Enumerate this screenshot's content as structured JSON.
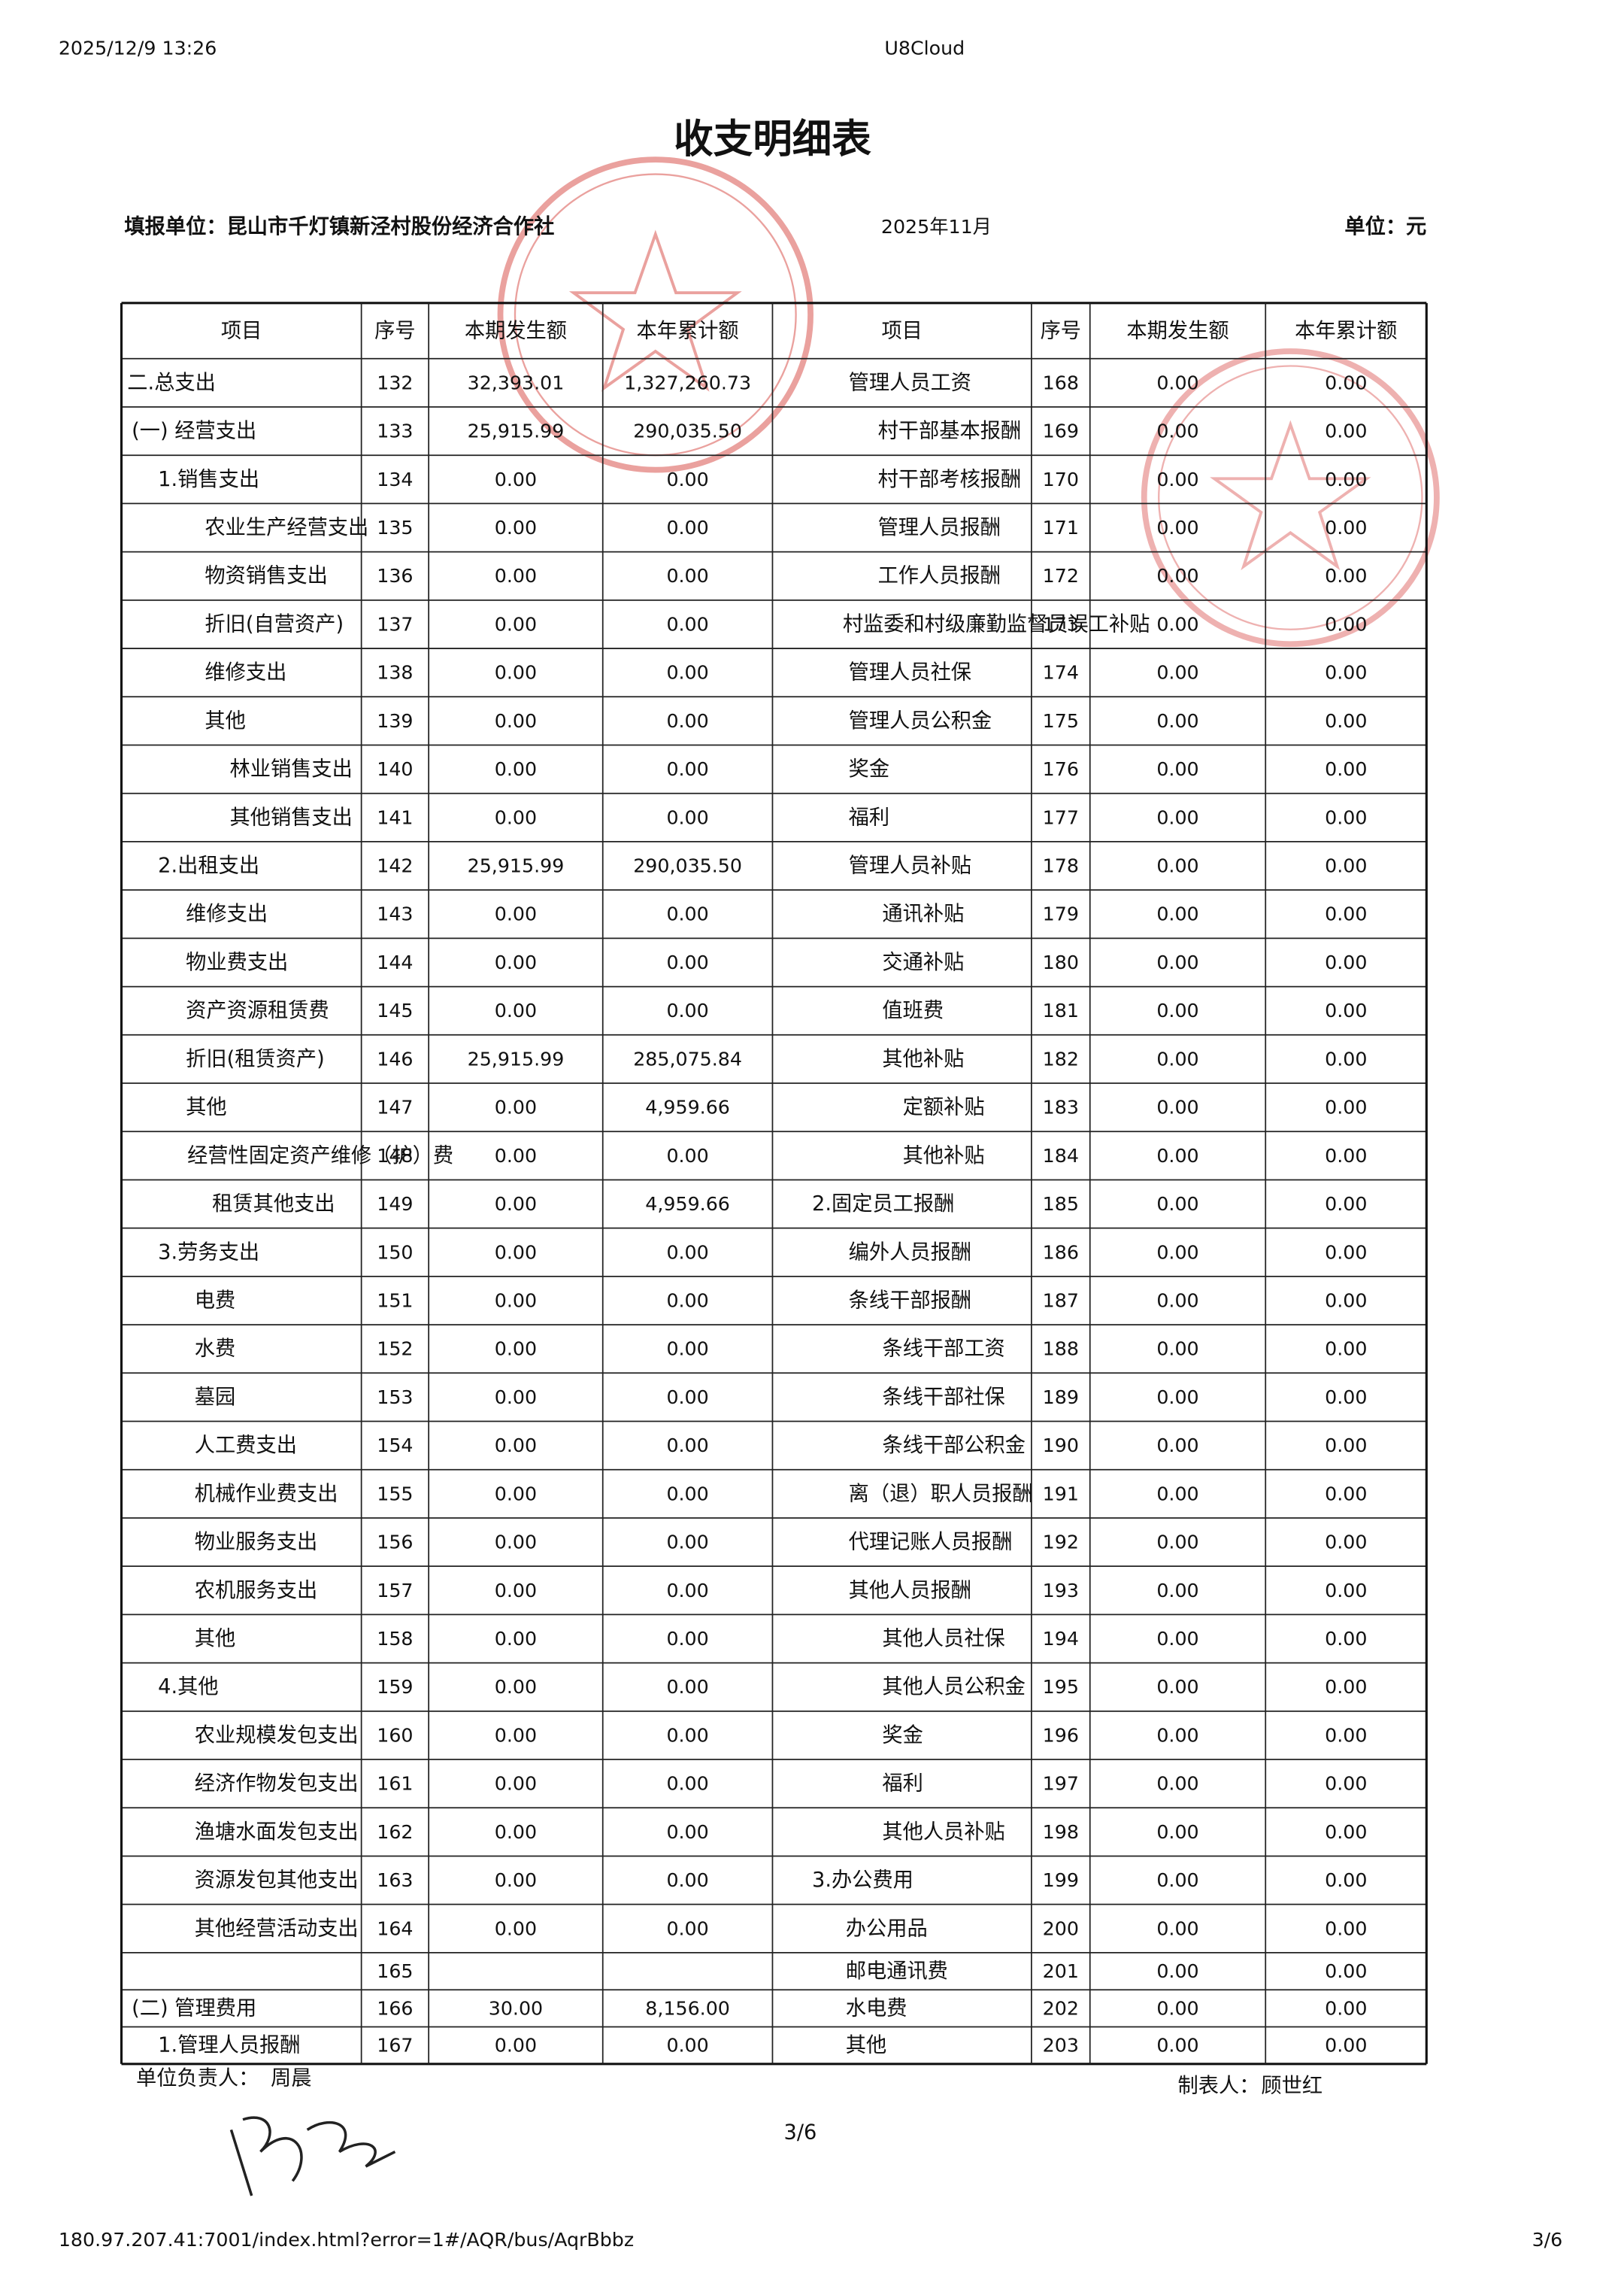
{
  "header": {
    "timestamp": "2025/12/9 13:26",
    "app": "U8Cloud"
  },
  "title": "收支明细表",
  "form": {
    "unit": "填报单位：昆山市千灯镇新泾村股份经济合作社",
    "period": "2025年11月",
    "currency": "单位：元"
  },
  "table": {
    "columns": [
      "项目",
      "序号",
      "本期发生额",
      "本年累计额",
      "项目",
      "序号",
      "本期发生额",
      "本年累计额"
    ],
    "rows": [
      [
        "二.总支出",
        132,
        "32,393.01",
        "1,327,260.73",
        "管理人员工资",
        168,
        "0.00",
        "0.00"
      ],
      [
        "(一) 经营支出",
        133,
        "25,915.99",
        "290,035.50",
        "村干部基本报酬",
        169,
        "0.00",
        "0.00"
      ],
      [
        "1.销售支出",
        134,
        "0.00",
        "0.00",
        "村干部考核报酬",
        170,
        "0.00",
        "0.00"
      ],
      [
        "农业生产经营支出",
        135,
        "0.00",
        "0.00",
        "管理人员报酬",
        171,
        "0.00",
        "0.00"
      ],
      [
        "物资销售支出",
        136,
        "0.00",
        "0.00",
        "工作人员报酬",
        172,
        "0.00",
        "0.00"
      ],
      [
        "折旧(自营资产)",
        137,
        "0.00",
        "0.00",
        "村监委和村级廉勤监督员误工补贴",
        173,
        "0.00",
        "0.00"
      ],
      [
        "维修支出",
        138,
        "0.00",
        "0.00",
        "管理人员社保",
        174,
        "0.00",
        "0.00"
      ],
      [
        "其他",
        139,
        "0.00",
        "0.00",
        "管理人员公积金",
        175,
        "0.00",
        "0.00"
      ],
      [
        "林业销售支出",
        140,
        "0.00",
        "0.00",
        "奖金",
        176,
        "0.00",
        "0.00"
      ],
      [
        "其他销售支出",
        141,
        "0.00",
        "0.00",
        "福利",
        177,
        "0.00",
        "0.00"
      ],
      [
        "2.出租支出",
        142,
        "25,915.99",
        "290,035.50",
        "管理人员补贴",
        178,
        "0.00",
        "0.00"
      ],
      [
        "维修支出",
        143,
        "0.00",
        "0.00",
        "通讯补贴",
        179,
        "0.00",
        "0.00"
      ],
      [
        "物业费支出",
        144,
        "0.00",
        "0.00",
        "交通补贴",
        180,
        "0.00",
        "0.00"
      ],
      [
        "资产资源租赁费",
        145,
        "0.00",
        "0.00",
        "值班费",
        181,
        "0.00",
        "0.00"
      ],
      [
        "折旧(租赁资产)",
        146,
        "25,915.99",
        "285,075.84",
        "其他补贴",
        182,
        "0.00",
        "0.00"
      ],
      [
        "其他",
        147,
        "0.00",
        "4,959.66",
        "定额补贴",
        183,
        "0.00",
        "0.00"
      ],
      [
        "经营性固定资产维修（护）费",
        148,
        "0.00",
        "0.00",
        "其他补贴",
        184,
        "0.00",
        "0.00"
      ],
      [
        "租赁其他支出",
        149,
        "0.00",
        "4,959.66",
        "2.固定员工报酬",
        185,
        "0.00",
        "0.00"
      ],
      [
        "3.劳务支出",
        150,
        "0.00",
        "0.00",
        "编外人员报酬",
        186,
        "0.00",
        "0.00"
      ],
      [
        "电费",
        151,
        "0.00",
        "0.00",
        "条线干部报酬",
        187,
        "0.00",
        "0.00"
      ],
      [
        "水费",
        152,
        "0.00",
        "0.00",
        "条线干部工资",
        188,
        "0.00",
        "0.00"
      ],
      [
        "墓园",
        153,
        "0.00",
        "0.00",
        "条线干部社保",
        189,
        "0.00",
        "0.00"
      ],
      [
        "人工费支出",
        154,
        "0.00",
        "0.00",
        "条线干部公积金",
        190,
        "0.00",
        "0.00"
      ],
      [
        "机械作业费支出",
        155,
        "0.00",
        "0.00",
        "离（退）职人员报酬",
        191,
        "0.00",
        "0.00"
      ],
      [
        "物业服务支出",
        156,
        "0.00",
        "0.00",
        "代理记账人员报酬",
        192,
        "0.00",
        "0.00"
      ],
      [
        "农机服务支出",
        157,
        "0.00",
        "0.00",
        "其他人员报酬",
        193,
        "0.00",
        "0.00"
      ],
      [
        "其他",
        158,
        "0.00",
        "0.00",
        "其他人员社保",
        194,
        "0.00",
        "0.00"
      ],
      [
        "4.其他",
        159,
        "0.00",
        "0.00",
        "其他人员公积金",
        195,
        "0.00",
        "0.00"
      ],
      [
        "农业规模发包支出",
        160,
        "0.00",
        "0.00",
        "奖金",
        196,
        "0.00",
        "0.00"
      ],
      [
        "经济作物发包支出",
        161,
        "0.00",
        "0.00",
        "福利",
        197,
        "0.00",
        "0.00"
      ],
      [
        "渔塘水面发包支出",
        162,
        "0.00",
        "0.00",
        "其他人员补贴",
        198,
        "0.00",
        "0.00"
      ],
      [
        "资源发包其他支出",
        163,
        "0.00",
        "0.00",
        "3.办公费用",
        199,
        "0.00",
        "0.00"
      ],
      [
        "其他经营活动支出",
        164,
        "0.00",
        "0.00",
        "办公用品",
        200,
        "0.00",
        "0.00"
      ],
      [
        null,
        165,
        null,
        null,
        "邮电通讯费",
        201,
        "0.00",
        "0.00"
      ],
      [
        "(二) 管理费用",
        166,
        "30.00",
        "8,156.00",
        "水电费",
        202,
        "0.00",
        "0.00"
      ],
      [
        "1.管理人员报酬",
        167,
        "0.00",
        "0.00",
        "其他",
        203,
        "0.00",
        "0.00"
      ]
    ]
  },
  "footer": {
    "leader_label": "单位负责人：",
    "leader": "周晨",
    "preparer_label": "制表人：",
    "preparer": "顾世红",
    "page": "3/6"
  },
  "browser_footer": {
    "url": "180.97.207.41:7001/index.html?error=1#/AQR/bus/AqrBbbz",
    "page": "3/6"
  }
}
